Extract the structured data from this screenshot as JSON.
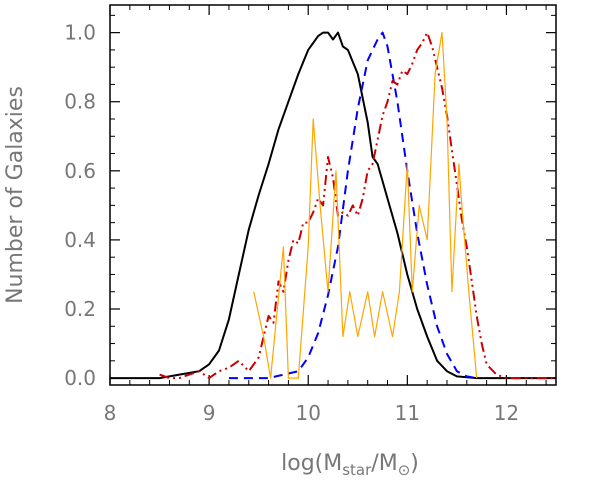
{
  "chart_data": {
    "type": "line",
    "title": "",
    "xlabel_parts": [
      "log(M",
      "star",
      "/M",
      "⊙",
      ")"
    ],
    "ylabel": "Number of Galaxies",
    "xlim": [
      8.0,
      12.5
    ],
    "ylim": [
      -0.02,
      1.08
    ],
    "xticks": [
      8,
      9,
      10,
      11,
      12
    ],
    "xtick_labels": [
      "8",
      "9",
      "10",
      "11",
      "12"
    ],
    "yticks": [
      0.0,
      0.2,
      0.4,
      0.6,
      0.8,
      1.0
    ],
    "ytick_labels": [
      "0.0",
      "0.2",
      "0.4",
      "0.6",
      "0.8",
      "1.0"
    ],
    "grid": false,
    "legend": "none",
    "series": [
      {
        "color": "#000000",
        "style": "solid",
        "x": [
          8.0,
          8.5,
          8.7,
          8.9,
          9.0,
          9.1,
          9.2,
          9.3,
          9.4,
          9.5,
          9.6,
          9.7,
          9.8,
          9.9,
          10.0,
          10.1,
          10.15,
          10.2,
          10.25,
          10.3,
          10.35,
          10.4,
          10.5,
          10.6,
          10.65,
          10.7,
          10.8,
          10.9,
          11.0,
          11.1,
          11.2,
          11.3,
          11.4,
          11.5,
          11.7,
          12.5
        ],
        "y": [
          0.0,
          0.0,
          0.01,
          0.02,
          0.04,
          0.08,
          0.17,
          0.3,
          0.43,
          0.53,
          0.62,
          0.72,
          0.8,
          0.88,
          0.95,
          0.99,
          1.0,
          1.0,
          0.98,
          1.0,
          0.96,
          0.95,
          0.88,
          0.74,
          0.64,
          0.62,
          0.52,
          0.42,
          0.3,
          0.2,
          0.12,
          0.05,
          0.02,
          0.005,
          0.0,
          0.0
        ]
      },
      {
        "color": "#0000ff",
        "style": "dashed",
        "x": [
          9.2,
          9.6,
          9.9,
          10.0,
          10.1,
          10.2,
          10.3,
          10.4,
          10.5,
          10.6,
          10.7,
          10.75,
          10.8,
          10.9,
          11.0,
          11.1,
          11.2,
          11.3,
          11.4,
          11.5,
          11.6,
          11.7
        ],
        "y": [
          0.0,
          0.0,
          0.02,
          0.06,
          0.13,
          0.24,
          0.38,
          0.6,
          0.78,
          0.92,
          0.98,
          1.0,
          0.96,
          0.8,
          0.6,
          0.42,
          0.27,
          0.15,
          0.07,
          0.02,
          0.005,
          0.0
        ]
      },
      {
        "color": "#cc0000",
        "style": "dash-dot-dot",
        "x": [
          8.5,
          8.6,
          8.7,
          8.8,
          8.9,
          9.0,
          9.1,
          9.2,
          9.3,
          9.4,
          9.5,
          9.55,
          9.6,
          9.65,
          9.7,
          9.75,
          9.8,
          9.85,
          9.9,
          9.95,
          10.0,
          10.05,
          10.1,
          10.15,
          10.2,
          10.25,
          10.3,
          10.35,
          10.4,
          10.45,
          10.5,
          10.55,
          10.6,
          10.65,
          10.7,
          10.75,
          10.8,
          10.85,
          10.9,
          10.95,
          11.0,
          11.05,
          11.1,
          11.15,
          11.2,
          11.25,
          11.3,
          11.35,
          11.4,
          11.45,
          11.5,
          11.55,
          11.6,
          11.65,
          11.7,
          11.75,
          11.8,
          11.9,
          12.0,
          12.5
        ],
        "y": [
          0.01,
          0.0,
          0.0,
          0.01,
          0.02,
          0.0,
          0.02,
          0.03,
          0.05,
          0.02,
          0.06,
          0.12,
          0.18,
          0.16,
          0.28,
          0.25,
          0.34,
          0.4,
          0.39,
          0.45,
          0.45,
          0.48,
          0.52,
          0.5,
          0.64,
          0.58,
          0.47,
          0.48,
          0.47,
          0.5,
          0.47,
          0.52,
          0.6,
          0.62,
          0.69,
          0.76,
          0.8,
          0.86,
          0.85,
          0.89,
          0.88,
          0.91,
          0.95,
          0.97,
          1.0,
          0.96,
          0.9,
          0.84,
          0.76,
          0.66,
          0.56,
          0.46,
          0.38,
          0.28,
          0.18,
          0.1,
          0.04,
          0.01,
          0.0,
          0.0
        ]
      },
      {
        "color": "#ffa500",
        "style": "solid-thin",
        "x": [
          9.45,
          9.55,
          9.62,
          9.75,
          9.8,
          9.85,
          9.9,
          10.0,
          10.05,
          10.12,
          10.2,
          10.28,
          10.35,
          10.42,
          10.5,
          10.6,
          10.67,
          10.75,
          10.85,
          10.92,
          11.0,
          11.05,
          11.12,
          11.2,
          11.28,
          11.35,
          11.4,
          11.45,
          11.52,
          11.55,
          11.62,
          11.7
        ],
        "y": [
          0.25,
          0.12,
          0.0,
          0.38,
          0.0,
          0.0,
          0.0,
          0.38,
          0.75,
          0.5,
          0.25,
          0.6,
          0.12,
          0.25,
          0.12,
          0.25,
          0.12,
          0.25,
          0.12,
          0.25,
          0.62,
          0.25,
          0.5,
          0.4,
          0.88,
          1.0,
          0.75,
          0.25,
          0.62,
          0.5,
          0.25,
          0.0
        ]
      }
    ]
  }
}
